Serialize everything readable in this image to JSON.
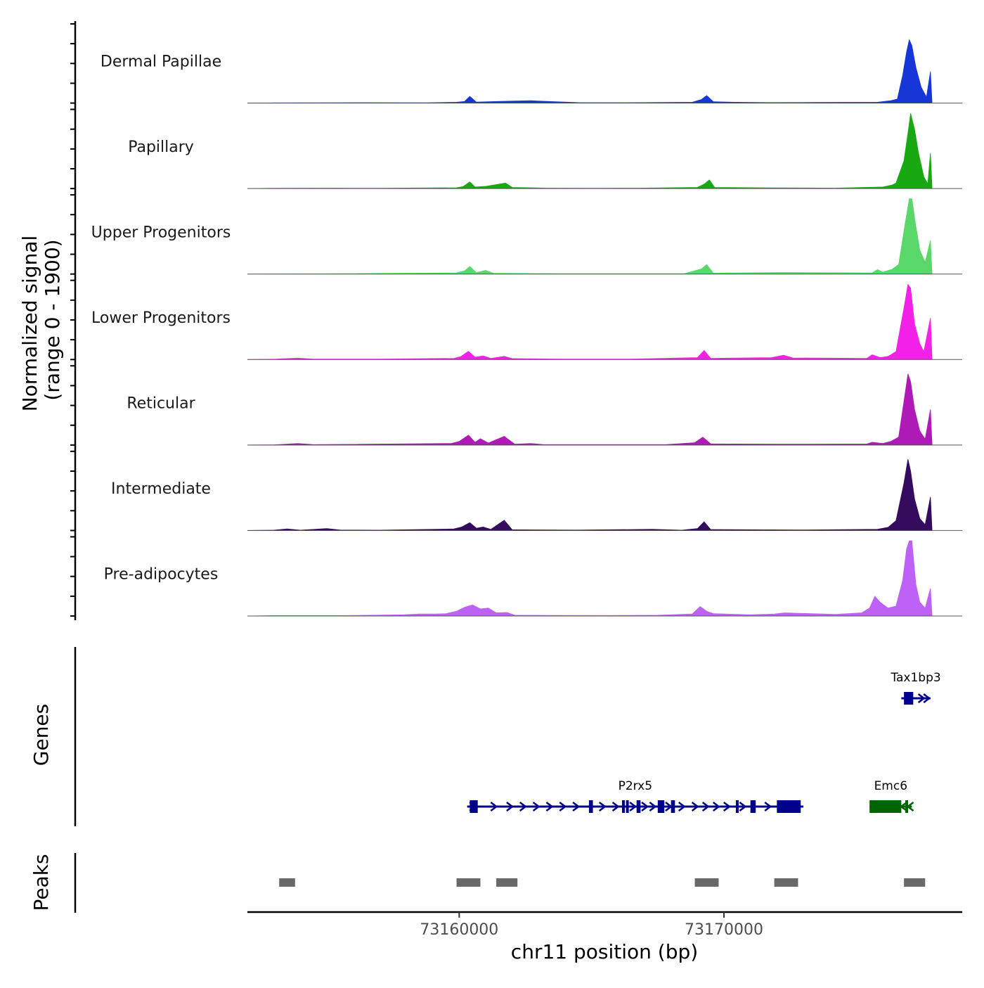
{
  "chart_data": {
    "type": "area",
    "title": "",
    "xlabel": "chr11 position (bp)",
    "ylabel_line1": "Normalized signal",
    "ylabel_line2": "(range 0 - 1900)",
    "ylim": [
      0,
      1900
    ],
    "xlim": [
      73152000,
      73179000
    ],
    "x_ticks": [
      73160000,
      73170000
    ],
    "x_tick_labels": [
      "73160000",
      "73170000"
    ],
    "series": [
      {
        "name": "Dermal Papillae",
        "color": "#1636d8",
        "points": [
          [
            73153000,
            5
          ],
          [
            73155000,
            8
          ],
          [
            73156500,
            10
          ],
          [
            73158800,
            8
          ],
          [
            73159900,
            20
          ],
          [
            73160200,
            40
          ],
          [
            73160400,
            170
          ],
          [
            73160650,
            25
          ],
          [
            73161100,
            35
          ],
          [
            73161700,
            45
          ],
          [
            73162700,
            60
          ],
          [
            73164500,
            12
          ],
          [
            73166000,
            10
          ],
          [
            73167000,
            12
          ],
          [
            73168800,
            20
          ],
          [
            73169150,
            90
          ],
          [
            73169350,
            190
          ],
          [
            73169600,
            35
          ],
          [
            73170400,
            20
          ],
          [
            73171700,
            12
          ],
          [
            73173500,
            15
          ],
          [
            73175800,
            20
          ],
          [
            73176300,
            60
          ],
          [
            73176550,
            100
          ],
          [
            73176750,
            700
          ],
          [
            73176900,
            1300
          ],
          [
            73177000,
            1600
          ],
          [
            73177100,
            1450
          ],
          [
            73177250,
            900
          ],
          [
            73177450,
            400
          ],
          [
            73177650,
            150
          ],
          [
            73177800,
            800
          ]
        ]
      },
      {
        "name": "Papillary",
        "color": "#18a812",
        "points": [
          [
            73153300,
            10
          ],
          [
            73155200,
            12
          ],
          [
            73157000,
            8
          ],
          [
            73159900,
            20
          ],
          [
            73160150,
            50
          ],
          [
            73160400,
            170
          ],
          [
            73160600,
            40
          ],
          [
            73161000,
            55
          ],
          [
            73161750,
            140
          ],
          [
            73162000,
            30
          ],
          [
            73163300,
            12
          ],
          [
            73165200,
            10
          ],
          [
            73166800,
            12
          ],
          [
            73169000,
            30
          ],
          [
            73169250,
            110
          ],
          [
            73169450,
            220
          ],
          [
            73169650,
            30
          ],
          [
            73171800,
            18
          ],
          [
            73174200,
            12
          ],
          [
            73176000,
            40
          ],
          [
            73176350,
            90
          ],
          [
            73176500,
            140
          ],
          [
            73176800,
            700
          ],
          [
            73176950,
            1400
          ],
          [
            73177050,
            1950
          ],
          [
            73177200,
            1500
          ],
          [
            73177350,
            900
          ],
          [
            73177550,
            300
          ],
          [
            73177700,
            120
          ],
          [
            73177800,
            900
          ]
        ]
      },
      {
        "name": "Upper Progenitors",
        "color": "#5ad76a",
        "points": [
          [
            73154500,
            5
          ],
          [
            73159900,
            30
          ],
          [
            73160200,
            80
          ],
          [
            73160400,
            190
          ],
          [
            73160650,
            40
          ],
          [
            73161000,
            90
          ],
          [
            73161300,
            20
          ],
          [
            73163800,
            10
          ],
          [
            73166000,
            10
          ],
          [
            73168500,
            10
          ],
          [
            73169150,
            130
          ],
          [
            73169350,
            240
          ],
          [
            73169600,
            25
          ],
          [
            73172200,
            40
          ],
          [
            73175600,
            30
          ],
          [
            73175800,
            110
          ],
          [
            73176000,
            50
          ],
          [
            73176350,
            120
          ],
          [
            73176600,
            240
          ],
          [
            73176850,
            1300
          ],
          [
            73177000,
            2250
          ],
          [
            73177100,
            2000
          ],
          [
            73177250,
            1200
          ],
          [
            73177400,
            600
          ],
          [
            73177600,
            300
          ],
          [
            73177800,
            850
          ]
        ]
      },
      {
        "name": "Lower Progenitors",
        "color": "#f321e7",
        "points": [
          [
            73153100,
            10
          ],
          [
            73153900,
            35
          ],
          [
            73154500,
            10
          ],
          [
            73155800,
            12
          ],
          [
            73157000,
            10
          ],
          [
            73159800,
            30
          ],
          [
            73160050,
            70
          ],
          [
            73160350,
            210
          ],
          [
            73160600,
            60
          ],
          [
            73160900,
            90
          ],
          [
            73161200,
            30
          ],
          [
            73161700,
            80
          ],
          [
            73162000,
            25
          ],
          [
            73163800,
            12
          ],
          [
            73165000,
            10
          ],
          [
            73166500,
            12
          ],
          [
            73169000,
            50
          ],
          [
            73169250,
            230
          ],
          [
            73169500,
            30
          ],
          [
            73171800,
            50
          ],
          [
            73172250,
            110
          ],
          [
            73172600,
            40
          ],
          [
            73175400,
            30
          ],
          [
            73175600,
            120
          ],
          [
            73175900,
            50
          ],
          [
            73176200,
            80
          ],
          [
            73176500,
            200
          ],
          [
            73176800,
            1300
          ],
          [
            73176950,
            2100
          ],
          [
            73177050,
            1800
          ],
          [
            73177200,
            900
          ],
          [
            73177400,
            400
          ],
          [
            73177550,
            200
          ],
          [
            73177800,
            1050
          ]
        ]
      },
      {
        "name": "Reticular",
        "color": "#af1ab7",
        "points": [
          [
            73153000,
            5
          ],
          [
            73153900,
            40
          ],
          [
            73154500,
            10
          ],
          [
            73159700,
            40
          ],
          [
            73160000,
            90
          ],
          [
            73160350,
            250
          ],
          [
            73160600,
            70
          ],
          [
            73160800,
            160
          ],
          [
            73161100,
            50
          ],
          [
            73161700,
            220
          ],
          [
            73162100,
            20
          ],
          [
            73162700,
            40
          ],
          [
            73163200,
            10
          ],
          [
            73165500,
            10
          ],
          [
            73167800,
            10
          ],
          [
            73168900,
            60
          ],
          [
            73169200,
            200
          ],
          [
            73169500,
            30
          ],
          [
            73172200,
            20
          ],
          [
            73175400,
            25
          ],
          [
            73175600,
            70
          ],
          [
            73176000,
            40
          ],
          [
            73176300,
            90
          ],
          [
            73176600,
            200
          ],
          [
            73176800,
            1100
          ],
          [
            73176950,
            1800
          ],
          [
            73177050,
            1600
          ],
          [
            73177200,
            900
          ],
          [
            73177400,
            350
          ],
          [
            73177600,
            150
          ],
          [
            73177800,
            900
          ]
        ]
      },
      {
        "name": "Intermediate",
        "color": "#350b5f",
        "points": [
          [
            73153000,
            10
          ],
          [
            73153500,
            40
          ],
          [
            73154000,
            10
          ],
          [
            73155000,
            50
          ],
          [
            73155500,
            15
          ],
          [
            73157000,
            10
          ],
          [
            73159800,
            40
          ],
          [
            73160100,
            90
          ],
          [
            73160400,
            200
          ],
          [
            73160650,
            60
          ],
          [
            73160900,
            90
          ],
          [
            73161200,
            30
          ],
          [
            73161700,
            260
          ],
          [
            73162000,
            20
          ],
          [
            73164400,
            12
          ],
          [
            73167300,
            30
          ],
          [
            73168400,
            10
          ],
          [
            73169000,
            50
          ],
          [
            73169250,
            220
          ],
          [
            73169500,
            25
          ],
          [
            73171000,
            20
          ],
          [
            73173000,
            15
          ],
          [
            73175800,
            30
          ],
          [
            73176200,
            80
          ],
          [
            73176500,
            250
          ],
          [
            73176800,
            1200
          ],
          [
            73176950,
            1800
          ],
          [
            73177050,
            1500
          ],
          [
            73177200,
            800
          ],
          [
            73177400,
            300
          ],
          [
            73177600,
            150
          ],
          [
            73177800,
            850
          ]
        ]
      },
      {
        "name": "Pre-adipocytes",
        "color": "#be61f7",
        "points": [
          [
            73153000,
            10
          ],
          [
            73155500,
            10
          ],
          [
            73157900,
            30
          ],
          [
            73158500,
            50
          ],
          [
            73159100,
            50
          ],
          [
            73159500,
            60
          ],
          [
            73159900,
            120
          ],
          [
            73160200,
            220
          ],
          [
            73160500,
            280
          ],
          [
            73160800,
            180
          ],
          [
            73161100,
            200
          ],
          [
            73161400,
            80
          ],
          [
            73161800,
            90
          ],
          [
            73162100,
            20
          ],
          [
            73163400,
            15
          ],
          [
            73165500,
            12
          ],
          [
            73167500,
            20
          ],
          [
            73168800,
            50
          ],
          [
            73169100,
            240
          ],
          [
            73169350,
            120
          ],
          [
            73169600,
            60
          ],
          [
            73171000,
            30
          ],
          [
            73171900,
            50
          ],
          [
            73172300,
            80
          ],
          [
            73174200,
            40
          ],
          [
            73175200,
            80
          ],
          [
            73175500,
            200
          ],
          [
            73175700,
            500
          ],
          [
            73175900,
            350
          ],
          [
            73176200,
            200
          ],
          [
            73176500,
            250
          ],
          [
            73176750,
            900
          ],
          [
            73176900,
            1700
          ],
          [
            73177000,
            2200
          ],
          [
            73177100,
            1900
          ],
          [
            73177250,
            800
          ],
          [
            73177400,
            350
          ],
          [
            73177600,
            200
          ],
          [
            73177800,
            700
          ]
        ]
      }
    ],
    "genes_label": "Genes",
    "genes": [
      {
        "name": "Tax1bp3",
        "start": 73176700,
        "end": 73177800,
        "strand": "+",
        "color": "#00008b",
        "row": 0,
        "exons": [
          [
            73176800,
            73177150
          ]
        ],
        "intron_markers": [
          73177450,
          73177650
        ]
      },
      {
        "name": "P2rx5",
        "start": 73160300,
        "end": 73173000,
        "strand": "+",
        "color": "#00008b",
        "row": 1,
        "exons": [
          [
            73160400,
            73160700
          ],
          [
            73164900,
            73165050
          ],
          [
            73166150,
            73166250
          ],
          [
            73166300,
            73166400
          ],
          [
            73166700,
            73166850
          ],
          [
            73167500,
            73167750
          ],
          [
            73168000,
            73168150
          ],
          [
            73170450,
            73170550
          ],
          [
            73171000,
            73171200
          ],
          [
            73172000,
            73172900
          ]
        ],
        "intron_markers": [
          73160500,
          73161300,
          73161900,
          73162400,
          73162900,
          73163400,
          73163900,
          73164400,
          73165400,
          73165900,
          73166550,
          73167000,
          73167300,
          73167900,
          73168400,
          73168900,
          73169300,
          73169700,
          73170100,
          73170700,
          73171650
        ]
      },
      {
        "name": "Emc6",
        "start": 73175500,
        "end": 73177100,
        "strand": "-",
        "color": "#006400",
        "row": 1,
        "exons": [
          [
            73175500,
            73176700
          ],
          [
            73176850,
            73176950
          ]
        ],
        "intron_markers": [
          73176800,
          73177050
        ]
      }
    ],
    "peaks_label": "Peaks",
    "peaks": [
      [
        73153200,
        73153800
      ],
      [
        73159900,
        73160800
      ],
      [
        73161400,
        73162200
      ],
      [
        73168900,
        73169800
      ],
      [
        73171900,
        73172800
      ],
      [
        73176800,
        73177600
      ]
    ],
    "peak_color": "#696969"
  }
}
